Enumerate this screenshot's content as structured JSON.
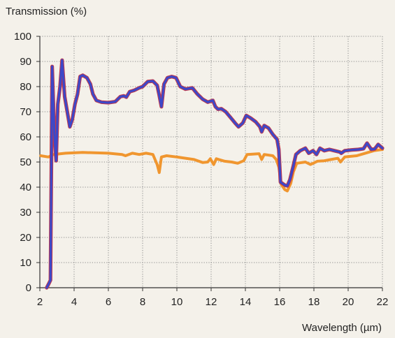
{
  "chart_data": {
    "type": "line",
    "title": "",
    "ylabel": "Transmission (%)",
    "xlabel": "Wavelength (µm)",
    "xlim": [
      2,
      22
    ],
    "ylim": [
      0,
      100
    ],
    "xticks": [
      2,
      4,
      6,
      8,
      10,
      12,
      14,
      16,
      18,
      20,
      22
    ],
    "yticks": [
      0,
      10,
      20,
      30,
      40,
      50,
      60,
      70,
      80,
      90,
      100
    ],
    "grid": true,
    "colors": {
      "background": "#f4f1ea",
      "grid": "#8a8a8a",
      "axis": "#333333"
    },
    "series": [
      {
        "color": "#f0962f",
        "points": [
          [
            2.05,
            52.5
          ],
          [
            2.5,
            52.0
          ],
          [
            2.8,
            53.0
          ],
          [
            3.5,
            53.5
          ],
          [
            4.5,
            53.8
          ],
          [
            6.0,
            53.5
          ],
          [
            6.8,
            53.0
          ],
          [
            7.0,
            52.5
          ],
          [
            7.4,
            53.5
          ],
          [
            7.8,
            53.0
          ],
          [
            8.2,
            53.5
          ],
          [
            8.6,
            53.0
          ],
          [
            8.85,
            49.0
          ],
          [
            8.97,
            45.8
          ],
          [
            9.1,
            52.0
          ],
          [
            9.4,
            52.5
          ],
          [
            10.0,
            52.0
          ],
          [
            10.5,
            51.5
          ],
          [
            11.0,
            51.0
          ],
          [
            11.5,
            49.8
          ],
          [
            11.8,
            50.0
          ],
          [
            11.95,
            51.3
          ],
          [
            12.15,
            49.0
          ],
          [
            12.3,
            51.3
          ],
          [
            12.45,
            51.0
          ],
          [
            12.8,
            50.3
          ],
          [
            13.2,
            50.0
          ],
          [
            13.55,
            49.5
          ],
          [
            13.9,
            50.5
          ],
          [
            14.1,
            53.0
          ],
          [
            14.8,
            53.3
          ],
          [
            14.95,
            51.0
          ],
          [
            15.1,
            53.0
          ],
          [
            15.6,
            52.5
          ],
          [
            15.8,
            51.0
          ],
          [
            15.95,
            48.0
          ],
          [
            16.1,
            41.0
          ],
          [
            16.3,
            39.0
          ],
          [
            16.45,
            38.5
          ],
          [
            16.65,
            41.5
          ],
          [
            16.8,
            46.0
          ],
          [
            17.0,
            49.5
          ],
          [
            17.5,
            50.0
          ],
          [
            17.8,
            49.0
          ],
          [
            18.2,
            50.3
          ],
          [
            18.6,
            50.5
          ],
          [
            19.0,
            51.0
          ],
          [
            19.4,
            51.5
          ],
          [
            19.55,
            50.0
          ],
          [
            19.8,
            52.0
          ],
          [
            20.5,
            52.5
          ],
          [
            21.0,
            53.5
          ],
          [
            21.5,
            54.5
          ],
          [
            22.0,
            55.0
          ]
        ]
      },
      {
        "color": "#3d48c8",
        "outline": "#c0394b",
        "points": [
          [
            2.4,
            0.0
          ],
          [
            2.55,
            2.0
          ],
          [
            2.62,
            3.0
          ],
          [
            2.72,
            88.0
          ],
          [
            2.85,
            61.0
          ],
          [
            2.95,
            50.5
          ],
          [
            3.05,
            73.0
          ],
          [
            3.18,
            80.0
          ],
          [
            3.3,
            90.5
          ],
          [
            3.45,
            76.0
          ],
          [
            3.6,
            70.0
          ],
          [
            3.75,
            64.0
          ],
          [
            3.9,
            67.0
          ],
          [
            4.05,
            73.0
          ],
          [
            4.2,
            77.0
          ],
          [
            4.35,
            84.0
          ],
          [
            4.5,
            84.5
          ],
          [
            4.75,
            83.5
          ],
          [
            4.95,
            81.0
          ],
          [
            5.1,
            77.0
          ],
          [
            5.3,
            74.5
          ],
          [
            5.6,
            73.8
          ],
          [
            6.0,
            73.6
          ],
          [
            6.4,
            74.0
          ],
          [
            6.7,
            76.0
          ],
          [
            6.9,
            76.3
          ],
          [
            7.05,
            75.8
          ],
          [
            7.25,
            78.0
          ],
          [
            7.5,
            78.5
          ],
          [
            7.8,
            79.5
          ],
          [
            8.0,
            80.0
          ],
          [
            8.3,
            82.0
          ],
          [
            8.6,
            82.2
          ],
          [
            8.85,
            80.5
          ],
          [
            8.97,
            76.5
          ],
          [
            9.1,
            72.0
          ],
          [
            9.25,
            81.0
          ],
          [
            9.45,
            83.5
          ],
          [
            9.7,
            84.0
          ],
          [
            9.95,
            83.5
          ],
          [
            10.2,
            80.0
          ],
          [
            10.5,
            79.0
          ],
          [
            10.9,
            79.5
          ],
          [
            11.2,
            77.0
          ],
          [
            11.5,
            75.0
          ],
          [
            11.8,
            73.8
          ],
          [
            12.1,
            74.5
          ],
          [
            12.25,
            72.0
          ],
          [
            12.4,
            71.0
          ],
          [
            12.6,
            71.2
          ],
          [
            12.85,
            70.0
          ],
          [
            13.1,
            68.0
          ],
          [
            13.4,
            65.5
          ],
          [
            13.6,
            64.0
          ],
          [
            13.85,
            65.5
          ],
          [
            14.05,
            68.5
          ],
          [
            14.3,
            67.5
          ],
          [
            14.6,
            66.0
          ],
          [
            14.85,
            64.0
          ],
          [
            14.95,
            62.0
          ],
          [
            15.1,
            64.5
          ],
          [
            15.35,
            63.5
          ],
          [
            15.6,
            61.0
          ],
          [
            15.85,
            59.0
          ],
          [
            15.95,
            55.0
          ],
          [
            16.05,
            42.0
          ],
          [
            16.3,
            40.8
          ],
          [
            16.45,
            40.5
          ],
          [
            16.6,
            43.0
          ],
          [
            16.8,
            48.5
          ],
          [
            16.95,
            53.0
          ],
          [
            17.2,
            54.5
          ],
          [
            17.5,
            55.5
          ],
          [
            17.7,
            53.5
          ],
          [
            17.95,
            54.5
          ],
          [
            18.15,
            53.0
          ],
          [
            18.35,
            55.5
          ],
          [
            18.6,
            54.5
          ],
          [
            18.9,
            55.0
          ],
          [
            19.2,
            54.5
          ],
          [
            19.5,
            54.0
          ],
          [
            19.6,
            53.5
          ],
          [
            19.8,
            54.5
          ],
          [
            20.2,
            54.8
          ],
          [
            20.6,
            55.0
          ],
          [
            20.9,
            55.3
          ],
          [
            21.1,
            57.5
          ],
          [
            21.35,
            55.0
          ],
          [
            21.55,
            55.2
          ],
          [
            21.75,
            57.0
          ],
          [
            22.0,
            55.5
          ]
        ]
      }
    ]
  }
}
